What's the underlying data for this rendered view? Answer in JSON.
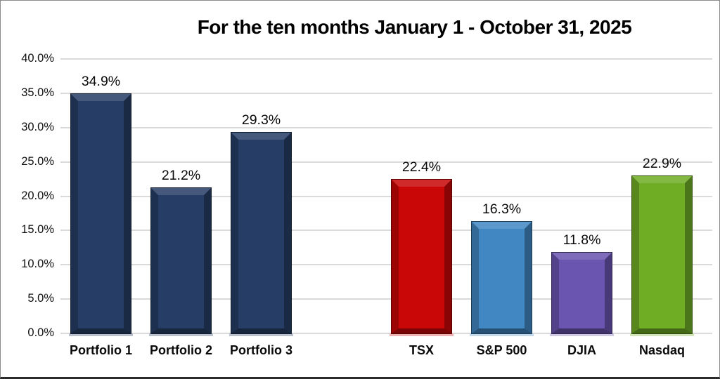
{
  "chart_data": {
    "type": "bar",
    "title": "For the ten months January 1 - October 31, 2025",
    "categories": [
      "Portfolio 1",
      "Portfolio 2",
      "Portfolio 3",
      "TSX",
      "S&P 500",
      "DJIA",
      "Nasdaq"
    ],
    "values": [
      34.9,
      21.2,
      29.3,
      22.4,
      16.3,
      11.8,
      22.9
    ],
    "data_labels": [
      "34.9%",
      "21.2%",
      "29.3%",
      "22.4%",
      "16.3%",
      "11.8%",
      "22.9%"
    ],
    "bar_colors": [
      "#263e66",
      "#263e66",
      "#263e66",
      "#c90707",
      "#4187c2",
      "#6a55b0",
      "#6fad25"
    ],
    "bar_style": "3d-bevel",
    "xlabel": "",
    "ylabel": "",
    "ylim": [
      0,
      40
    ],
    "yticks": [
      "0.0%",
      "5.0%",
      "10.0%",
      "15.0%",
      "20.0%",
      "25.0%",
      "30.0%",
      "35.0%",
      "40.0%"
    ],
    "grid": true,
    "legend": false,
    "gap_after_index": 2,
    "background": "#ffffff",
    "gridline_color": "#dadada",
    "text_color": "#000000"
  }
}
